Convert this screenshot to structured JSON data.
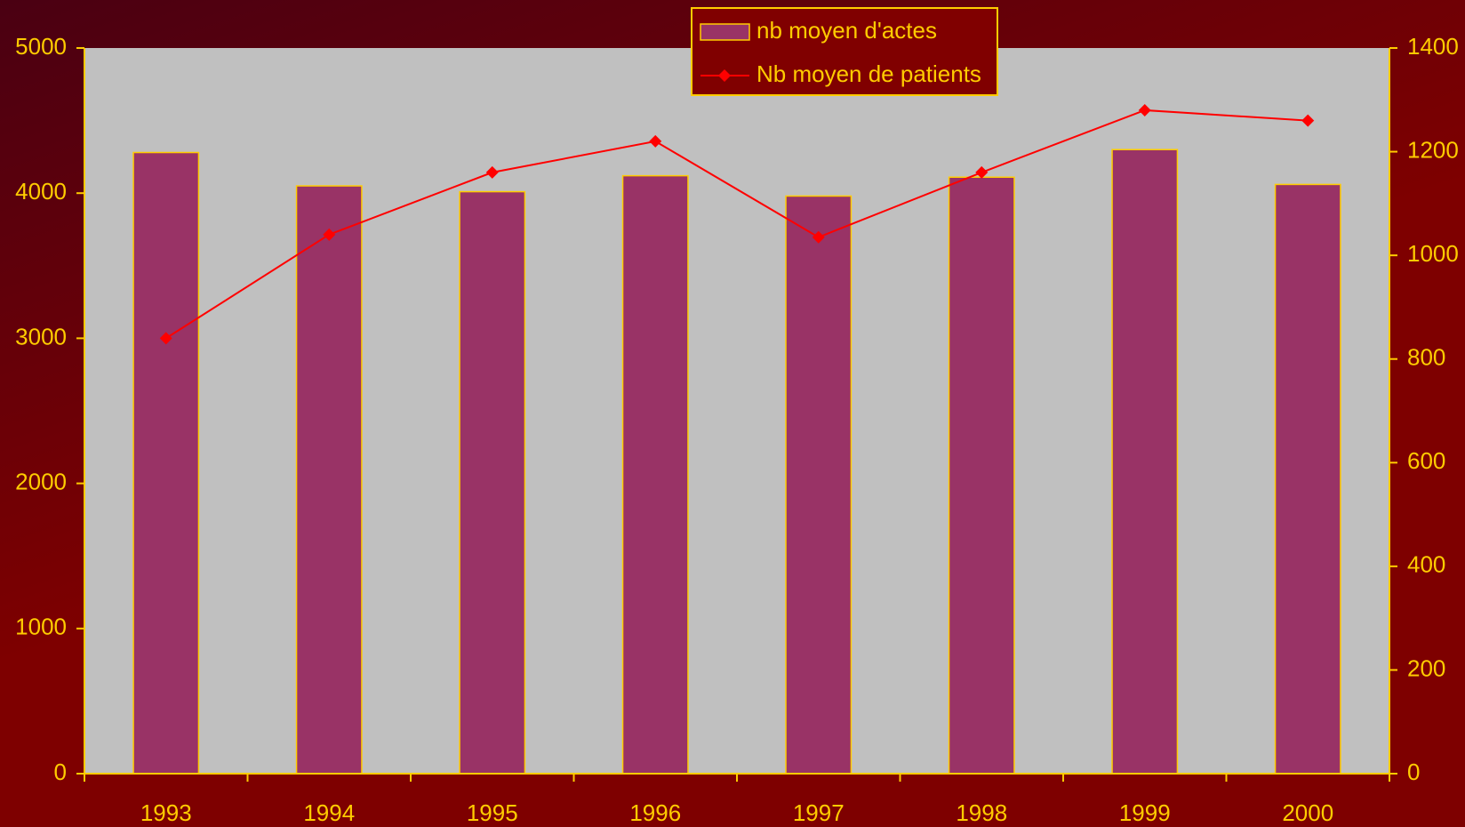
{
  "chart_data": {
    "type": "bar_line",
    "categories": [
      "1993",
      "1994",
      "1995",
      "1996",
      "1997",
      "1998",
      "1999",
      "2000"
    ],
    "series": [
      {
        "name": "nb moyen d'actes",
        "color": "#993366",
        "values": [
          4280,
          4050,
          4010,
          4120,
          3980,
          4110,
          4300,
          4060
        ]
      },
      {
        "name": "Nb moyen de patients",
        "color": "#ff0000",
        "axis": "y2",
        "values": [
          840,
          1040,
          1160,
          1220,
          1035,
          1160,
          1280,
          1260
        ]
      }
    ],
    "ylim": [
      0,
      5000
    ],
    "yticks": [
      0,
      1000,
      2000,
      3000,
      4000,
      5000
    ],
    "y2lim": [
      0,
      1400
    ],
    "y2ticks": [
      0,
      200,
      400,
      600,
      800,
      1000,
      1200,
      1400
    ],
    "legend": "top"
  }
}
